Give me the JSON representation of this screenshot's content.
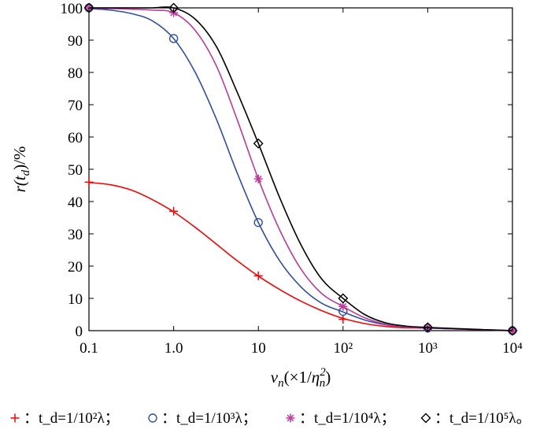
{
  "chart_data": {
    "type": "line",
    "title": "",
    "xlabel": "v_n(×1/η_n^2)",
    "ylabel": "r(t_d)/%",
    "x_scale": "log",
    "xlim": [
      0.1,
      10000
    ],
    "ylim": [
      0,
      100
    ],
    "x_ticks": [
      0.1,
      1,
      10,
      100,
      1000,
      10000
    ],
    "x_tick_labels": [
      "0.1",
      "1.0",
      "10",
      "10²",
      "10³",
      "10⁴"
    ],
    "y_ticks": [
      0,
      10,
      20,
      30,
      40,
      50,
      60,
      70,
      80,
      90,
      100
    ],
    "y_tick_labels": [
      "0",
      "10",
      "20",
      "30",
      "40",
      "50",
      "60",
      "70",
      "80",
      "90",
      "100"
    ],
    "grid": false,
    "legend_position": "bottom",
    "x": [
      0.1,
      1,
      10,
      100,
      1000,
      10000
    ],
    "series": [
      {
        "name": "+：t_d=1/10²λ；",
        "marker": "plus",
        "color": "#ff0000",
        "values": [
          46,
          37,
          17,
          3.5,
          0.8,
          0
        ],
        "curve_x": [
          0.1,
          0.18,
          0.32,
          0.56,
          1,
          1.8,
          3.2,
          5.6,
          10,
          18,
          32,
          56,
          100,
          180,
          320,
          560,
          1000,
          3000,
          10000
        ],
        "curve_y": [
          45.9,
          45.2,
          43.5,
          40.6,
          36.8,
          32,
          26.8,
          21.7,
          16.9,
          12.7,
          9.1,
          6.2,
          3.8,
          2.2,
          1.3,
          0.9,
          0.8,
          0.4,
          0
        ]
      },
      {
        "name": "○：t_d=1/10³λ；",
        "marker": "circle",
        "color": "#2e4fa8",
        "values": [
          100,
          90.5,
          33.5,
          6,
          0.8,
          0
        ],
        "curve_x": [
          0.1,
          0.18,
          0.32,
          0.56,
          1,
          1.8,
          3.2,
          5.6,
          10,
          18,
          32,
          56,
          100,
          180,
          320,
          560,
          1000,
          3000,
          10000
        ],
        "curve_y": [
          99.8,
          99.3,
          98.2,
          96,
          90.5,
          80,
          65.5,
          49,
          33.5,
          21.5,
          13.5,
          8.5,
          5.8,
          3.3,
          1.8,
          1.1,
          0.8,
          0.4,
          0
        ]
      },
      {
        "name": "✱：t_d=1/10⁴λ；",
        "marker": "asterisk",
        "color": "#c0399b",
        "values": [
          100,
          98.5,
          47,
          7.5,
          0.9,
          0
        ],
        "curve_x": [
          0.1,
          0.18,
          0.32,
          0.56,
          1,
          1.8,
          3.2,
          5.6,
          10,
          18,
          32,
          56,
          100,
          180,
          320,
          560,
          1000,
          3000,
          10000
        ],
        "curve_y": [
          99.9,
          99.8,
          99.6,
          99.3,
          98.5,
          93,
          82,
          65.5,
          47,
          31,
          19,
          11.5,
          7.5,
          4,
          2,
          1.2,
          0.9,
          0.45,
          0
        ]
      },
      {
        "name": "◇：t_d=1/10⁵λ。",
        "marker": "diamond",
        "color": "#000000",
        "values": [
          100,
          100,
          58,
          10,
          1,
          0
        ],
        "curve_x": [
          0.1,
          0.18,
          0.32,
          0.56,
          1,
          1.8,
          3.2,
          5.6,
          10,
          18,
          32,
          56,
          100,
          180,
          320,
          560,
          1000,
          3000,
          10000
        ],
        "curve_y": [
          100,
          100,
          100,
          100,
          100,
          96.5,
          88,
          74,
          58,
          41,
          26.5,
          16,
          10,
          5,
          2.4,
          1.4,
          1,
          0.5,
          0
        ]
      }
    ]
  }
}
